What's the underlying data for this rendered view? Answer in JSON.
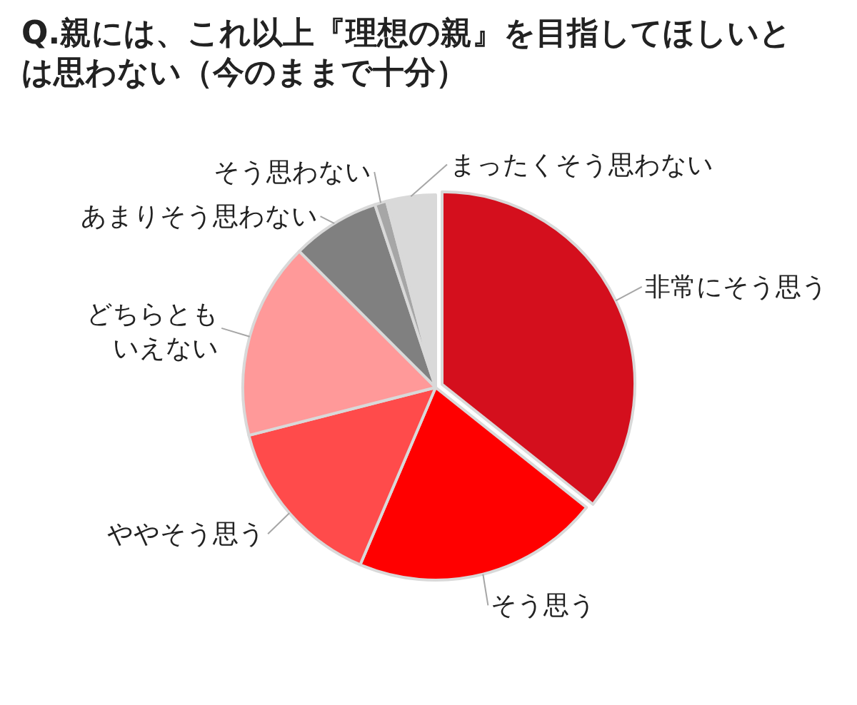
{
  "chart_data": {
    "type": "pie",
    "title": "Q.親には、これ以上『理想の親』を目指してほしいとは思わない（今のままで十分）",
    "categories": [
      "非常にそう思う",
      "そう思う",
      "ややそう思う",
      "どちらともいえない",
      "あまりそう思わない",
      "そう思わない",
      "まったくそう思わない"
    ],
    "values": [
      35.7,
      20.7,
      14.6,
      16.5,
      7.4,
      1.0,
      4.1
    ],
    "colors": [
      "#d40f1d",
      "#ff0000",
      "#ff4b4b",
      "#ff9999",
      "#808080",
      "#a6a6a6",
      "#d9d9d9"
    ]
  }
}
